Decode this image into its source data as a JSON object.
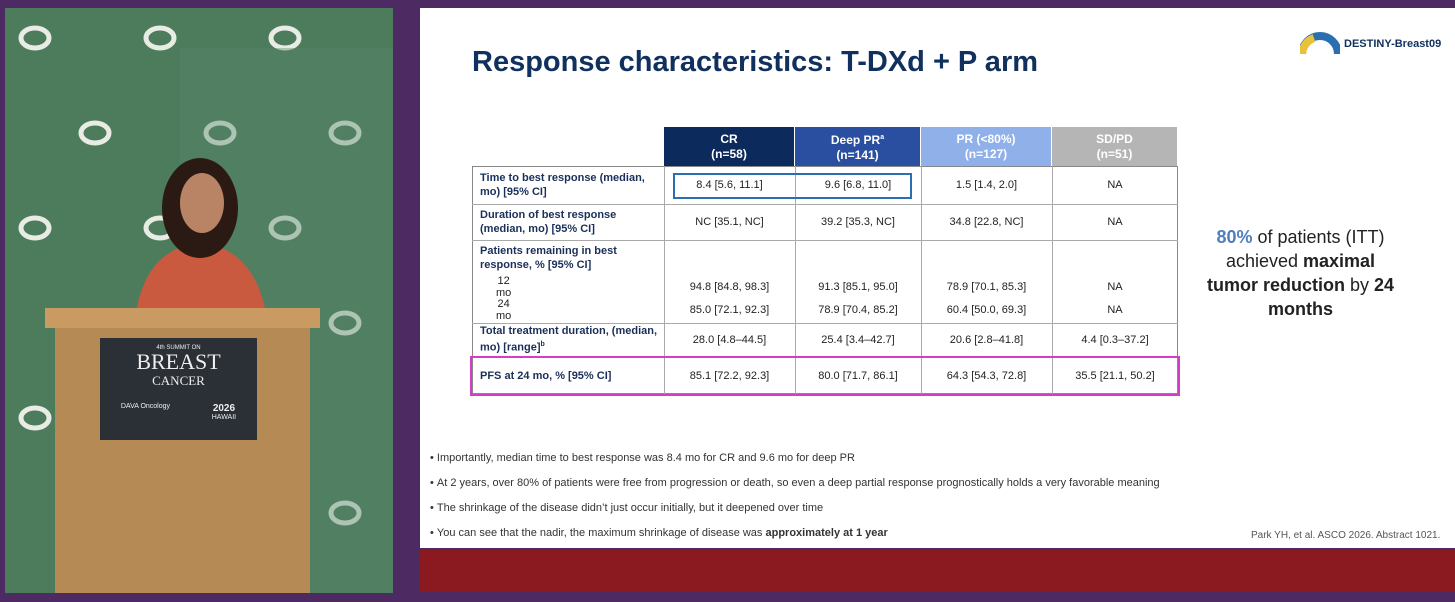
{
  "podium_sign": {
    "summit": "4th SUMMIT ON",
    "title1": "BREAST",
    "title2": "CANCER",
    "sponsor": "DAVA Oncology",
    "year": "2026",
    "place": "HAWAII"
  },
  "slide": {
    "title": "Response characteristics: T-DXd + P arm",
    "logo": "DESTINY-Breast09",
    "table": {
      "headers": [
        {
          "label": "CR",
          "sub": "(n=58)"
        },
        {
          "label": "Deep PR",
          "sup": "a",
          "sub": "(n=141)"
        },
        {
          "label": "PR (<80%)",
          "sub": "(n=127)"
        },
        {
          "label": "SD/PD",
          "sub": "(n=51)"
        }
      ],
      "rows": [
        {
          "label": "Time to best response (median, mo) [95% CI]",
          "cells": [
            "8.4 [5.6, 11.1]",
            "9.6 [6.8, 11.0]",
            "1.5 [1.4, 2.0]",
            "NA"
          ]
        },
        {
          "label": "Duration of best response (median, mo) [95% CI]",
          "cells": [
            "NC [35.1, NC]",
            "39.2 [35.3, NC]",
            "34.8 [22.8, NC]",
            "NA"
          ]
        },
        {
          "label": "Patients remaining in best response, % [95% CI]",
          "subrows": [
            {
              "label": "12 mo",
              "cells": [
                "94.8 [84.8, 98.3]",
                "91.3 [85.1, 95.0]",
                "78.9 [70.1, 85.3]",
                "NA"
              ]
            },
            {
              "label": "24 mo",
              "cells": [
                "85.0 [72.1, 92.3]",
                "78.9 [70.4, 85.2]",
                "60.4 [50.0, 69.3]",
                "NA"
              ]
            }
          ]
        },
        {
          "label": "Total treatment duration, (median, mo) [range]",
          "sup": "b",
          "cells": [
            "28.0 [4.8–44.5]",
            "25.4 [3.4–42.7]",
            "20.6 [2.8–41.8]",
            "4.4 [0.3–37.2]"
          ]
        },
        {
          "label": "PFS at 24 mo, % [95% CI]",
          "cells": [
            "85.1 [72.2, 92.3]",
            "80.0 [71.7, 86.1]",
            "64.3 [54.3, 72.8]",
            "35.5 [21.1, 50.2]"
          ]
        }
      ]
    },
    "side_note": {
      "highlight": "80%",
      "text1": " of patients (ITT) achieved ",
      "bold1": "maximal tumor reduction",
      "text2": " by ",
      "bold2": "24 months"
    },
    "bullets": [
      "Importantly, median time to best response was 8.4 mo for CR and 9.6 mo for deep PR",
      "At 2 years, over 80% of patients were free from progression or death, so even a deep partial response prognostically holds a very favorable meaning",
      "The shrinkage of the disease didn’t just occur initially, but it deepened over time",
      {
        "text": "You can see that the nadir, the maximum shrinkage of disease was ",
        "bold": "approximately at 1 year"
      }
    ],
    "citation": "Park YH, et al. ASCO 2026. Abstract 1021."
  }
}
